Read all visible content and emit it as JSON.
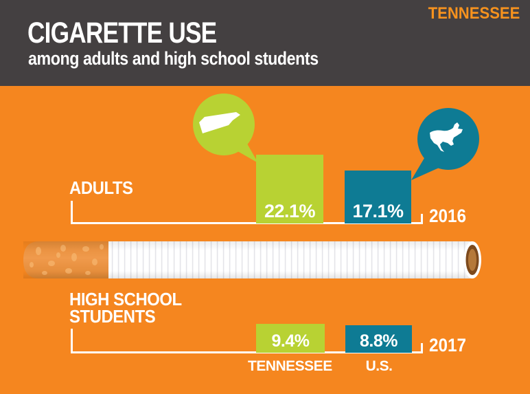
{
  "header": {
    "brand": "TENNESSEE",
    "title": "CIGARETTE USE",
    "subtitle": "among adults and high school students"
  },
  "chart_data": {
    "type": "bar",
    "title": "CIGARETTE USE among adults and high school students",
    "unit": "percent",
    "legend_icons": [
      "tennessee-state-silhouette (green bubble)",
      "usa-map-silhouette (teal bubble)"
    ],
    "series_names": [
      "TENNESSEE",
      "U.S."
    ],
    "groups": [
      {
        "label": "ADULTS",
        "year": "2016",
        "series": [
          {
            "name": "TENNESSEE",
            "value": 22.1,
            "label": "22.1%"
          },
          {
            "name": "U.S.",
            "value": 17.1,
            "label": "17.1%"
          }
        ]
      },
      {
        "label": "HIGH SCHOOL STUDENTS",
        "year": "2017",
        "series": [
          {
            "name": "TENNESSEE",
            "value": 9.4,
            "label": "9.4%"
          },
          {
            "name": "U.S.",
            "value": 8.8,
            "label": "8.8%"
          }
        ]
      }
    ],
    "axis_labels": {
      "tennessee": "TENNESSEE",
      "us": "U.S."
    },
    "ylim": [
      0,
      25
    ],
    "grid": false,
    "legend_position": "above-bars"
  },
  "colors": {
    "bg": "#f5861f",
    "header": "#444041",
    "brand": "#f6921e",
    "green": "#b8d233",
    "teal": "#0e7b94",
    "text": "#ffffff"
  }
}
